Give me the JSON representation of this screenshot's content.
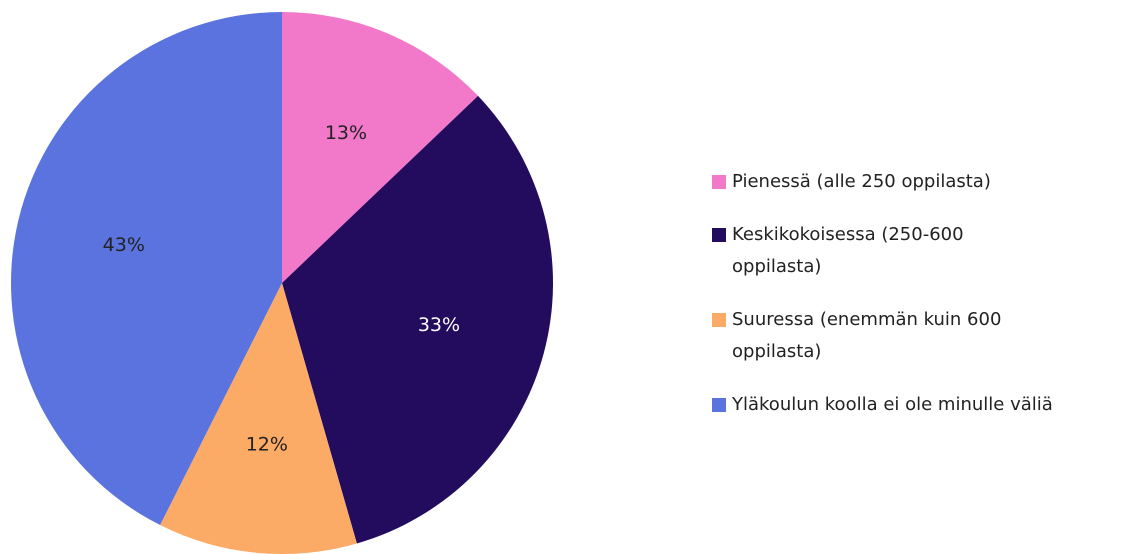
{
  "chart_data": {
    "type": "pie",
    "categories": [
      "Pienessä (alle 250 oppilasta)",
      "Keskikokoisessa (250-600 oppilasta)",
      "Suuressa (enemmän kuin 600 oppilasta)",
      "Yläkoulun koolla ei ole minulle väliä"
    ],
    "values": [
      13,
      33,
      12,
      43
    ],
    "value_labels": [
      "13%",
      "33%",
      "12%",
      "43%"
    ],
    "colors": [
      "#f279c9",
      "#230b5e",
      "#fbab66",
      "#5b73df"
    ],
    "legend": "right"
  }
}
